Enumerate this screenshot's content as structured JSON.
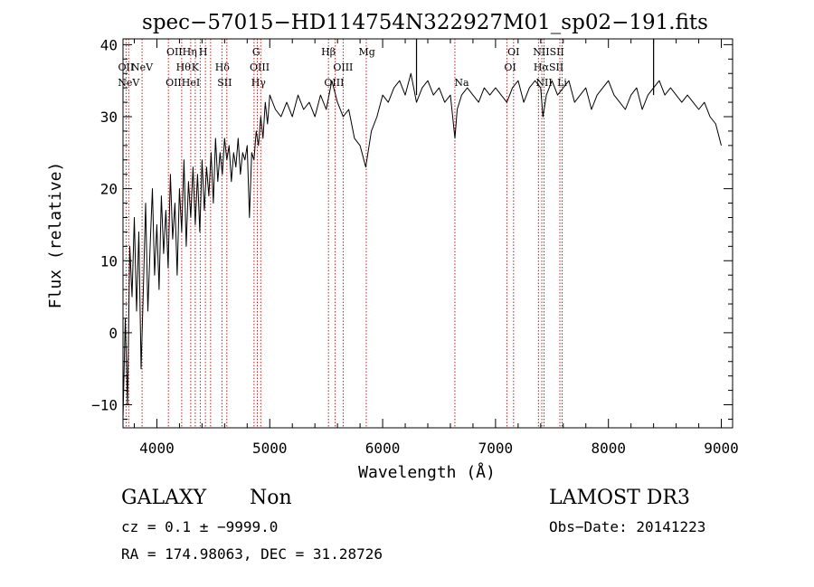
{
  "chart_data": {
    "type": "line",
    "title": "spec−57015−HD114754N322927M01_sp02−191.fits",
    "xlabel": "Wavelength (Å)",
    "ylabel": "Flux (relative)",
    "xlim": [
      3700,
      9100
    ],
    "ylim": [
      -13.2,
      40.8
    ],
    "x_ticks": [
      4000,
      5000,
      6000,
      7000,
      8000,
      9000
    ],
    "y_ticks": [
      -10,
      0,
      10,
      20,
      30,
      40
    ],
    "series": [
      {
        "name": "spectrum",
        "color": "#000000",
        "x": [
          3700,
          3720,
          3740,
          3760,
          3780,
          3800,
          3820,
          3840,
          3860,
          3880,
          3900,
          3920,
          3940,
          3960,
          3980,
          4000,
          4020,
          4040,
          4060,
          4080,
          4100,
          4120,
          4140,
          4160,
          4180,
          4200,
          4220,
          4240,
          4260,
          4280,
          4300,
          4320,
          4340,
          4360,
          4380,
          4400,
          4420,
          4440,
          4460,
          4480,
          4500,
          4520,
          4540,
          4560,
          4580,
          4600,
          4620,
          4640,
          4660,
          4680,
          4700,
          4720,
          4740,
          4760,
          4780,
          4800,
          4820,
          4840,
          4860,
          4880,
          4900,
          4920,
          4940,
          4960,
          4980,
          5000,
          5050,
          5100,
          5150,
          5200,
          5250,
          5300,
          5350,
          5400,
          5450,
          5500,
          5550,
          5600,
          5650,
          5700,
          5750,
          5800,
          5850,
          5900,
          5950,
          6000,
          6050,
          6100,
          6150,
          6200,
          6250,
          6300,
          6350,
          6400,
          6450,
          6500,
          6550,
          6600,
          6640,
          6660,
          6700,
          6750,
          6800,
          6850,
          6900,
          6950,
          7000,
          7050,
          7100,
          7150,
          7200,
          7250,
          7300,
          7350,
          7400,
          7420,
          7450,
          7500,
          7550,
          7600,
          7650,
          7700,
          7750,
          7800,
          7850,
          7900,
          7950,
          8000,
          8050,
          8100,
          8150,
          8200,
          8250,
          8300,
          8350,
          8400,
          8450,
          8500,
          8550,
          8600,
          8650,
          8700,
          8750,
          8800,
          8850,
          8900,
          8950,
          9000
        ],
        "y": [
          -12,
          2,
          -10,
          12,
          5,
          16,
          3,
          14,
          -5,
          6,
          18,
          3,
          12,
          20,
          8,
          15,
          6,
          19,
          11,
          17,
          9,
          22,
          13,
          18,
          8,
          20,
          14,
          24,
          12,
          21,
          16,
          23,
          15,
          22,
          14,
          24,
          17,
          23,
          19,
          25,
          18,
          27,
          21,
          25,
          22,
          27,
          24,
          26,
          21,
          25,
          23,
          27,
          22,
          25,
          24,
          26,
          16,
          25,
          24,
          28,
          26,
          30,
          27,
          32,
          29,
          33,
          31,
          30,
          32,
          30,
          33,
          31,
          32,
          30,
          33,
          31,
          35,
          32,
          30,
          31,
          27,
          26,
          23,
          28,
          30,
          33,
          32,
          34,
          35,
          33,
          36,
          32,
          34,
          35,
          33,
          34,
          32,
          33,
          27,
          31,
          33,
          34,
          33,
          32,
          34,
          33,
          34,
          33,
          32,
          34,
          35,
          32,
          34,
          35,
          34,
          30,
          33,
          35,
          33,
          34,
          35,
          32,
          33,
          34,
          31,
          33,
          34,
          35,
          33,
          32,
          31,
          33,
          34,
          31,
          33,
          34,
          35,
          33,
          34,
          33,
          32,
          33,
          32,
          31,
          32,
          30,
          29,
          26
        ]
      }
    ],
    "spikes": [
      {
        "x": 6300,
        "y": 40.8
      },
      {
        "x": 8400,
        "y": 40.8
      }
    ],
    "line_markers": [
      {
        "x": 3727,
        "label": "OII",
        "row": 1
      },
      {
        "x": 3869,
        "label": "NeV",
        "row": 2
      },
      {
        "x": 3750,
        "label": "NeV",
        "row": 3
      },
      {
        "x": 4220,
        "label": "OIIHη",
        "row": 0
      },
      {
        "x": 4410,
        "label": "H",
        "row": 0
      },
      {
        "x": 4235,
        "label": "Hθ",
        "row": 1
      },
      {
        "x": 4340,
        "label": "K",
        "row": 1
      },
      {
        "x": 4230,
        "label": "OIIHeI",
        "row": 3
      },
      {
        "x": 4580,
        "label": "Hδ",
        "row": 1
      },
      {
        "x": 4600,
        "label": "SII",
        "row": 3
      },
      {
        "x": 4880,
        "label": "G",
        "row": 0
      },
      {
        "x": 4910,
        "label": "OIII",
        "row": 1
      },
      {
        "x": 4900,
        "label": "Hγ",
        "row": 3
      },
      {
        "x": 5520,
        "label": "Hβ",
        "row": 0
      },
      {
        "x": 5650,
        "label": "OIII",
        "row": 1
      },
      {
        "x": 5570,
        "label": "OIII",
        "row": 3
      },
      {
        "x": 5860,
        "label": "Mg",
        "row": 0
      },
      {
        "x": 6700,
        "label": "Na",
        "row": 3
      },
      {
        "x": 7160,
        "label": "OI",
        "row": 0
      },
      {
        "x": 7130,
        "label": "OI",
        "row": 2
      },
      {
        "x": 7470,
        "label": "NIISII",
        "row": 0
      },
      {
        "x": 7470,
        "label": "HαSII",
        "row": 1
      },
      {
        "x": 7430,
        "label": "NII",
        "row": 3
      },
      {
        "x": 7590,
        "label": "Li",
        "row": 3
      }
    ],
    "marker_lines_x": [
      3727,
      3750,
      3869,
      4102,
      4220,
      4300,
      4340,
      4384,
      4430,
      4476,
      4576,
      4620,
      4861,
      4890,
      4920,
      5520,
      5580,
      5650,
      5855,
      6640,
      7100,
      7160,
      7380,
      7410,
      7430,
      7570,
      7590
    ],
    "marker_color": "#c00000"
  },
  "info": {
    "class_label": "GALAXY",
    "subclass": "Non",
    "survey": "LAMOST DR3",
    "cz_line": "cz = 0.1 ± −9999.0",
    "obs_date": "Obs−Date: 20141223",
    "coords": "RA = 174.98063, DEC =  31.28726"
  }
}
